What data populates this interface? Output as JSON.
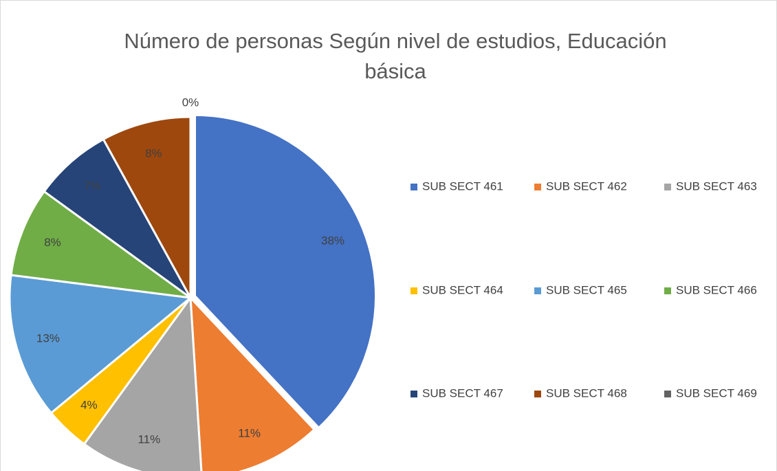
{
  "chart_data": {
    "type": "pie",
    "title": "Número de personas Según nivel de estudios, Educación básica",
    "categories": [
      "SUB SECT 461",
      "SUB SECT 462",
      "SUB SECT 463",
      "SUB SECT 464",
      "SUB SECT 465",
      "SUB SECT 466",
      "SUB SECT 467",
      "SUB SECT 468",
      "SUB SECT 469"
    ],
    "values": [
      38,
      11,
      11,
      4,
      13,
      8,
      7,
      8,
      0
    ],
    "value_labels": [
      "38%",
      "11%",
      "11%",
      "4%",
      "13%",
      "8%",
      "7%",
      "8%",
      "0%"
    ],
    "colors": [
      "#4472c4",
      "#ed7d31",
      "#a5a5a5",
      "#ffc000",
      "#5b9bd5",
      "#70ad47",
      "#264478",
      "#9e480e",
      "#636363"
    ],
    "legend": "right"
  }
}
